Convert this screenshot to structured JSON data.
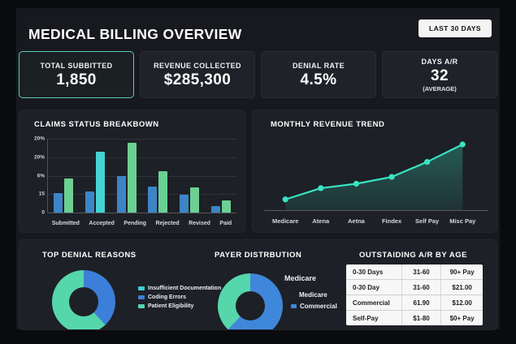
{
  "header": {
    "title": "MEDICAL BILLING OVERVIEW",
    "range_button": "LAST 30 DAYS"
  },
  "kpis": [
    {
      "label": "TOTAL SUBBITTED",
      "value": "1,850",
      "sub": ""
    },
    {
      "label": "REVENUE COLLECTED",
      "value": "$285,300",
      "sub": ""
    },
    {
      "label": "DENIAL RATE",
      "value": "4.5%",
      "sub": ""
    },
    {
      "label": "DAYS A/R",
      "value": "32",
      "sub": "(AVERAGE)"
    }
  ],
  "chart_data": [
    {
      "type": "bar",
      "title": "CLAIMS STATUS BREAKBOWN",
      "categories": [
        "Submitted",
        "Accepted",
        "Pending",
        "Rejected",
        "Revised",
        "Paid"
      ],
      "series": [
        {
          "name": "series-blue",
          "color": "#3d85c6",
          "values": [
            26,
            29,
            49,
            35,
            24,
            9
          ]
        },
        {
          "name": "series-green",
          "color": "#6bd092",
          "values": [
            46,
            82,
            94,
            56,
            34,
            17
          ],
          "color_overrides": {
            "1": "#46d3d3"
          }
        }
      ],
      "y_tick_labels": [
        "20%",
        "20%",
        "6%",
        "15",
        "0"
      ],
      "ylim": [
        0,
        100
      ],
      "grid": true,
      "legend": "none"
    },
    {
      "type": "line",
      "title": "MONTHLY REVENUE TREND",
      "x": [
        "Medicare",
        "Atena",
        "Aetna",
        "Findex",
        "Self Pay",
        "Misc Pay"
      ],
      "values": [
        12,
        30,
        37,
        48,
        72,
        100
      ],
      "ylim": [
        0,
        100
      ],
      "line_color": "#39e4c3",
      "area": true,
      "markers": true,
      "grid": false
    },
    {
      "type": "pie",
      "title": "TOP DENIAL REASONS",
      "slices": [
        {
          "label": "Coding Errors",
          "value": 38,
          "color": "#3c7fd8"
        },
        {
          "label": "Patient Eligibility",
          "value": 62,
          "color": "#55d7ab"
        }
      ],
      "legend": [
        {
          "label": "Insufficient Documentation",
          "color": "#43c9d4"
        },
        {
          "label": "Coding Errors",
          "color": "#3c7fd8"
        },
        {
          "label": "Patient Eligibility",
          "color": "#55d7ab"
        }
      ],
      "legend_position": "right"
    },
    {
      "type": "pie",
      "title": "PAYER DISTRBUTION",
      "slices": [
        {
          "label": "Commercial",
          "value": 62,
          "color": "#3f87da"
        },
        {
          "label": "Medicare",
          "value": 38,
          "color": "#55d7ab"
        }
      ],
      "labels": [
        {
          "text": "Medicare",
          "marker": "",
          "size": "large"
        },
        {
          "text": "Medicare",
          "marker": "",
          "size": "normal"
        },
        {
          "text": "Commercial",
          "marker": "#3f87da",
          "size": "normal"
        }
      ]
    }
  ],
  "ar_table": {
    "title": "OUTSTAIDING A/R BY AGE",
    "rows": [
      [
        "0-30 Days",
        "31-60",
        "90+ Pay"
      ],
      [
        "0-30 Day",
        "31-60",
        "$21.00"
      ],
      [
        "Commercial",
        "61.90",
        "$12.00"
      ],
      [
        "Self-Pay",
        "$1-80",
        "$0+ Pay"
      ]
    ]
  },
  "colors": {
    "accent_teal": "#57cfad",
    "bar_blue": "#3d85c6",
    "bar_green": "#6bd092",
    "bar_cyan": "#46d3d3",
    "line_teal": "#39e4c3",
    "donut_blue": "#3f87da",
    "donut_green": "#55d7ab",
    "table_bg": "#f7f7f7"
  }
}
